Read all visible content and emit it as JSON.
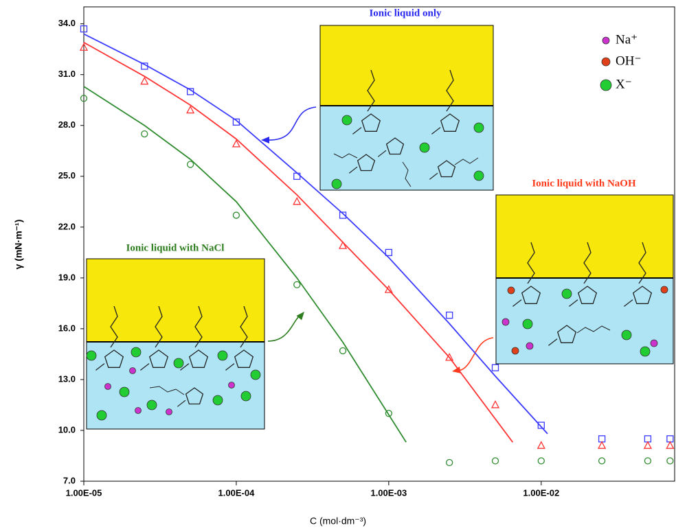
{
  "chart_data": {
    "type": "scatter",
    "xlabel": "C (mol·dm⁻³)",
    "ylabel": "γ (mN·m⁻¹)",
    "xscale": "log",
    "xlim": [
      1e-05,
      0.075
    ],
    "ylim": [
      7,
      35
    ],
    "xticks": [
      {
        "value": 1e-05,
        "label": "1.00E-05"
      },
      {
        "value": 0.0001,
        "label": "1.00E-04"
      },
      {
        "value": 0.001,
        "label": "1.00E-03"
      },
      {
        "value": 0.01,
        "label": "1.00E-02"
      }
    ],
    "yticks": [
      {
        "value": 7,
        "label": "7.0"
      },
      {
        "value": 10,
        "label": "10.0"
      },
      {
        "value": 13,
        "label": "13.0"
      },
      {
        "value": 16,
        "label": "16.0"
      },
      {
        "value": 19,
        "label": "19.0"
      },
      {
        "value": 22,
        "label": "22.0"
      },
      {
        "value": 25,
        "label": "25.0"
      },
      {
        "value": 28,
        "label": "28.0"
      },
      {
        "value": 31,
        "label": "31.0"
      },
      {
        "value": 34,
        "label": "34.0"
      }
    ],
    "series": [
      {
        "color": "#3a3aff",
        "marker": "square",
        "x": [
          1e-05,
          2.5e-05,
          5e-05,
          0.0001,
          0.00025,
          0.0005,
          0.001,
          0.0025,
          0.005,
          0.01,
          0.025,
          0.05,
          0.07
        ],
        "values": [
          33.7,
          31.5,
          30.0,
          28.2,
          25.0,
          22.7,
          20.5,
          16.8,
          13.7,
          10.3,
          9.5,
          9.5,
          9.5
        ]
      },
      {
        "color": "#ff3333",
        "marker": "triangle",
        "x": [
          1e-05,
          2.5e-05,
          5e-05,
          0.0001,
          0.00025,
          0.0005,
          0.001,
          0.0025,
          0.005,
          0.01,
          0.025,
          0.05,
          0.07
        ],
        "values": [
          32.6,
          30.6,
          28.9,
          26.9,
          23.5,
          20.9,
          18.3,
          14.3,
          11.5,
          9.1,
          9.1,
          9.1,
          9.1
        ]
      },
      {
        "color": "#2e8b2e",
        "marker": "circle",
        "x": [
          1e-05,
          2.5e-05,
          5e-05,
          0.0001,
          0.00025,
          0.0005,
          0.001,
          0.0025,
          0.005,
          0.01,
          0.025,
          0.05,
          0.07
        ],
        "values": [
          29.6,
          27.5,
          25.7,
          22.7,
          18.6,
          14.7,
          11.0,
          8.1,
          8.2,
          8.2,
          8.2,
          8.2,
          8.2
        ]
      },
      {
        "color": "#3a3aff",
        "marker": "line",
        "x": [
          1e-05,
          2.5e-05,
          5e-05,
          0.0001,
          0.00025,
          0.0005,
          0.001,
          0.0025,
          0.005,
          0.011
        ],
        "values": [
          33.4,
          31.6,
          30.1,
          28.3,
          25.2,
          22.8,
          20.2,
          16.3,
          13.2,
          9.8
        ]
      },
      {
        "color": "#ff3333",
        "marker": "line",
        "x": [
          1e-05,
          2.5e-05,
          5e-05,
          0.0001,
          0.00025,
          0.0005,
          0.001,
          0.0025,
          0.0065
        ],
        "values": [
          32.9,
          30.9,
          29.2,
          27.2,
          23.9,
          21.1,
          18.3,
          14.3,
          9.3
        ]
      },
      {
        "color": "#2e8b2e",
        "marker": "line",
        "x": [
          1e-05,
          2.5e-05,
          5e-05,
          0.0001,
          0.00025,
          0.0005,
          0.0013
        ],
        "values": [
          30.3,
          28.0,
          26.0,
          23.5,
          19.0,
          15.2,
          9.3
        ]
      }
    ],
    "annotations": [
      {
        "text": "Ionic liquid only",
        "color": "#2a2aee"
      },
      {
        "text": "Ionic liquid with NaOH",
        "color": "#ff3a1a"
      },
      {
        "text": "Ionic liquid with NaCl",
        "color": "#2e7d1e"
      }
    ],
    "ion_legend": [
      {
        "text": "Na⁺",
        "color": "#cc33cc"
      },
      {
        "text": "OH⁻",
        "color": "#e0401a"
      },
      {
        "text": "X⁻",
        "color": "#22cc33"
      }
    ]
  }
}
